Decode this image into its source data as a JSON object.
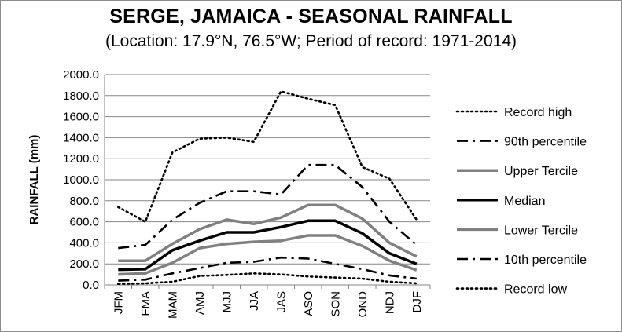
{
  "title": "SERGE, JAMAICA - SEASONAL RAINFALL",
  "subtitle": "(Location: 17.9°N, 76.5°W; Period of record: 1971-2014)",
  "chart_data": {
    "type": "line",
    "ylabel": "RAINFALL (mm)",
    "xlabel": "",
    "ylim": [
      0,
      2000
    ],
    "yticks": [
      "0.0",
      "200.0",
      "400.0",
      "600.0",
      "800.0",
      "1000.0",
      "1200.0",
      "1400.0",
      "1600.0",
      "1800.0",
      "2000.0"
    ],
    "ytick_values": [
      0,
      200,
      400,
      600,
      800,
      1000,
      1200,
      1400,
      1600,
      1800,
      2000
    ],
    "grid": true,
    "legend_position": "right",
    "categories": [
      "JFM",
      "FMA",
      "MAM",
      "AMJ",
      "MJJ",
      "JJA",
      "JAS",
      "ASO",
      "SON",
      "OND",
      "NDJ",
      "DJF"
    ],
    "series": [
      {
        "name": "Record high",
        "style": "dotted",
        "color": "#000000",
        "values": [
          740,
          600,
          1260,
          1390,
          1400,
          1360,
          1840,
          1770,
          1710,
          1120,
          1010,
          620
        ]
      },
      {
        "name": "90th percentile",
        "style": "dashdot",
        "color": "#000000",
        "values": [
          350,
          380,
          620,
          780,
          890,
          890,
          860,
          1140,
          1140,
          930,
          600,
          380
        ]
      },
      {
        "name": "Upper Tercile",
        "style": "solid",
        "color": "#808080",
        "values": [
          230,
          230,
          390,
          530,
          620,
          580,
          640,
          760,
          760,
          630,
          400,
          270
        ]
      },
      {
        "name": "Median",
        "style": "solid",
        "color": "#000000",
        "values": [
          145,
          150,
          330,
          420,
          500,
          500,
          550,
          610,
          610,
          490,
          300,
          200
        ]
      },
      {
        "name": "Lower Tercile",
        "style": "solid",
        "color": "#808080",
        "values": [
          100,
          110,
          210,
          350,
          390,
          410,
          420,
          470,
          470,
          370,
          230,
          140
        ]
      },
      {
        "name": "10th percentile",
        "style": "dashdot",
        "color": "#000000",
        "values": [
          40,
          50,
          110,
          160,
          210,
          220,
          260,
          250,
          200,
          150,
          90,
          60
        ]
      },
      {
        "name": "Record low",
        "style": "dotted",
        "color": "#000000",
        "values": [
          10,
          15,
          30,
          85,
          95,
          110,
          100,
          80,
          70,
          60,
          30,
          15
        ]
      }
    ]
  }
}
